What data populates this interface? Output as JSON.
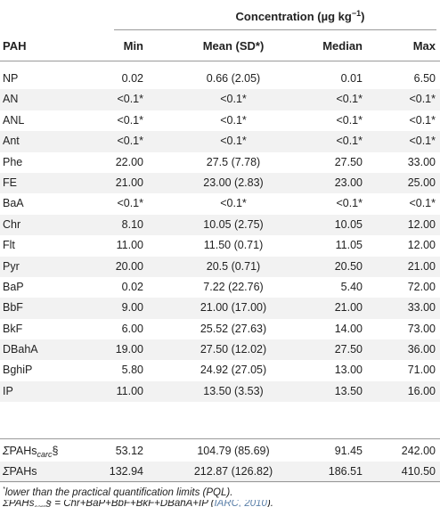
{
  "header": {
    "concentration_label": "Concentration (µg kg",
    "concentration_exp": "−1",
    "concentration_close": ")",
    "columns": [
      "PAH",
      "Min",
      "Mean (SD*)",
      "Median",
      "Max"
    ]
  },
  "rows": [
    {
      "pah": "NP",
      "min": "0.02",
      "mean": "0.66 (2.05)",
      "median": "0.01",
      "max": "6.50"
    },
    {
      "pah": "AN",
      "min": "<0.1*",
      "mean": "<0.1*",
      "median": "<0.1*",
      "max": "<0.1*"
    },
    {
      "pah": "ANL",
      "min": "<0.1*",
      "mean": "<0.1*",
      "median": "<0.1*",
      "max": "<0.1*"
    },
    {
      "pah": "Ant",
      "min": "<0.1*",
      "mean": "<0.1*",
      "median": "<0.1*",
      "max": "<0.1*"
    },
    {
      "pah": "Phe",
      "min": "22.00",
      "mean": "27.5 (7.78)",
      "median": "27.50",
      "max": "33.00"
    },
    {
      "pah": "FE",
      "min": "21.00",
      "mean": "23.00 (2.83)",
      "median": "23.00",
      "max": "25.00"
    },
    {
      "pah": "BaA",
      "min": "<0.1*",
      "mean": "<0.1*",
      "median": "<0.1*",
      "max": "<0.1*"
    },
    {
      "pah": "Chr",
      "min": "8.10",
      "mean": "10.05 (2.75)",
      "median": "10.05",
      "max": "12.00"
    },
    {
      "pah": "Flt",
      "min": "11.00",
      "mean": "11.50 (0.71)",
      "median": "11.05",
      "max": "12.00"
    },
    {
      "pah": "Pyr",
      "min": "20.00",
      "mean": "20.5 (0.71)",
      "median": "20.50",
      "max": "21.00"
    },
    {
      "pah": "BaP",
      "min": "0.02",
      "mean": "7.22 (22.76)",
      "median": "5.40",
      "max": "72.00"
    },
    {
      "pah": "BbF",
      "min": "9.00",
      "mean": "21.00 (17.00)",
      "median": "21.00",
      "max": "33.00"
    },
    {
      "pah": "BkF",
      "min": "6.00",
      "mean": "25.52 (27.63)",
      "median": "14.00",
      "max": "73.00"
    },
    {
      "pah": "DBahA",
      "min": "19.00",
      "mean": "27.50 (12.02)",
      "median": "27.50",
      "max": "36.00"
    },
    {
      "pah": "BghiP",
      "min": "5.80",
      "mean": "24.92 (27.05)",
      "median": "13.00",
      "max": "71.00"
    },
    {
      "pah": "IP",
      "min": "11.00",
      "mean": "13.50 (3.53)",
      "median": "13.50",
      "max": "16.00"
    }
  ],
  "sums": [
    {
      "sigma": "Σ",
      "pah": "PAHs",
      "sub": "carc",
      "suffix": "§",
      "min": "53.12",
      "mean": "104.79 (85.69)",
      "median": "91.45",
      "max": "242.00"
    },
    {
      "sigma": "Σ",
      "pah": "PAHs",
      "sub": "",
      "suffix": "",
      "min": "132.94",
      "mean": "212.87 (126.82)",
      "median": "186.51",
      "max": "410.50"
    }
  ],
  "footnotes": {
    "note1_mark": "*",
    "note1": "lower than the practical quantification limits (PQL).",
    "note2_lhs": "ΣPAHs",
    "note2_sub": "carc",
    "note2_rhs": "§ = Chr+BaP+BbF+BkF+DBahA+IP (",
    "note2_cite": "IARC, 2010",
    "note2_end": ")."
  }
}
